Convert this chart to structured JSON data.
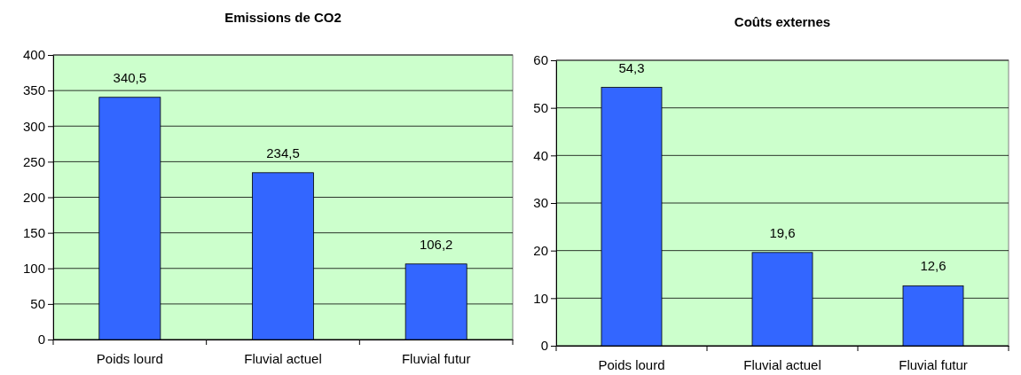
{
  "chart_data": [
    {
      "type": "bar",
      "title": "Emissions de CO2",
      "categories": [
        "Poids lourd",
        "Fluvial actuel",
        "Fluvial futur"
      ],
      "values": [
        340.5,
        234.5,
        106.2
      ],
      "value_labels": [
        "340,5",
        "234,5",
        "106,2"
      ],
      "color": "#3366ff",
      "ylim": [
        0,
        400
      ],
      "yticks": [
        0,
        50,
        100,
        150,
        200,
        250,
        300,
        350,
        400
      ],
      "grid": "y"
    },
    {
      "type": "bar",
      "title": "Coûts externes",
      "categories": [
        "Poids lourd",
        "Fluvial actuel",
        "Fluvial futur"
      ],
      "values": [
        54.3,
        19.6,
        12.6
      ],
      "value_labels": [
        "54,3",
        "19,6",
        "12,6"
      ],
      "color": "#3366ff",
      "ylim": [
        0,
        60
      ],
      "yticks": [
        0,
        10,
        20,
        30,
        40,
        50,
        60
      ],
      "grid": "y"
    }
  ]
}
